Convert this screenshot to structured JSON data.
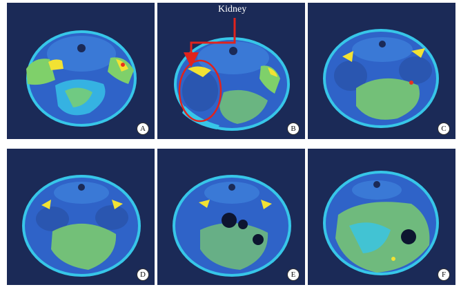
{
  "panels": [
    {
      "id": "A",
      "label": "A"
    },
    {
      "id": "B",
      "label": "B"
    },
    {
      "id": "C",
      "label": "C"
    },
    {
      "id": "D",
      "label": "D"
    },
    {
      "id": "E",
      "label": "E"
    },
    {
      "id": "F",
      "label": "F"
    }
  ],
  "annotation": {
    "label": "Kidney"
  },
  "colors": {
    "background": "#1b2a57",
    "tissue_blue": "#2f63c8",
    "tissue_cyan": "#37c6e8",
    "tissue_green": "#7fd06a",
    "tissue_yellow": "#f2e233",
    "tissue_red": "#e8321f",
    "annotation_red": "#e0231c"
  }
}
